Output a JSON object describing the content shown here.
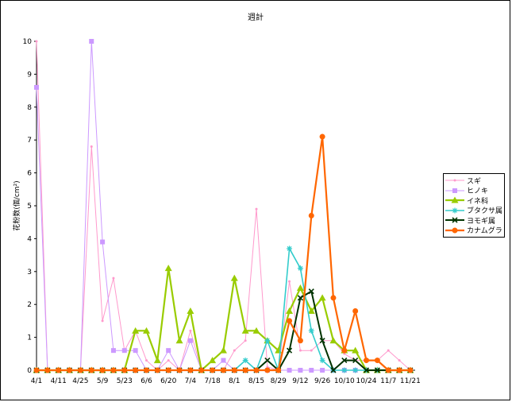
{
  "chart_data": {
    "type": "line",
    "title": "週計",
    "xlabel": "",
    "ylabel": "花粉数(個/cm²)",
    "ylim": [
      0,
      10
    ],
    "yticks": [
      0,
      1,
      2,
      3,
      4,
      5,
      6,
      7,
      8,
      9,
      10
    ],
    "x_tick_labels": [
      "4/1",
      "4/11",
      "4/25",
      "5/9",
      "5/23",
      "6/6",
      "6/20",
      "7/4",
      "7/18",
      "8/1",
      "8/15",
      "8/29",
      "9/12",
      "9/26",
      "10/10",
      "10/24",
      "11/7",
      "11/21"
    ],
    "legend_position": "right",
    "grid": false,
    "series": [
      {
        "name": "スギ",
        "color": "#ff99cc",
        "marker": "dot",
        "values": [
          10,
          0,
          0,
          0,
          0,
          6.8,
          1.5,
          2.8,
          0.6,
          1.2,
          0.3,
          0,
          0.3,
          0,
          1.2,
          0,
          0,
          0,
          0.6,
          0.9,
          4.9,
          0.1,
          0,
          2.7,
          0.6,
          0.6,
          0.9,
          0.9,
          0.5,
          0.3,
          0.3,
          0.3,
          0.6,
          0.3,
          0
        ]
      },
      {
        "name": "ヒノキ",
        "color": "#cc99ff",
        "marker": "square",
        "values": [
          8.6,
          0,
          0,
          0,
          0,
          10,
          3.9,
          0.6,
          0.6,
          0.6,
          0,
          0,
          0.6,
          0,
          0.9,
          0,
          0,
          0.3,
          0,
          0,
          0,
          0,
          0,
          0,
          0,
          0,
          0,
          0,
          0,
          0,
          0,
          0,
          0,
          0,
          0
        ]
      },
      {
        "name": "イネ科",
        "color": "#99cc00",
        "marker": "triangle",
        "values": [
          0,
          0,
          0,
          0,
          0,
          0,
          0,
          0,
          0,
          1.2,
          1.2,
          0.3,
          3.1,
          0.9,
          1.8,
          0,
          0.3,
          0.6,
          2.8,
          1.2,
          1.2,
          0.9,
          0.6,
          1.8,
          2.5,
          1.8,
          2.2,
          0.9,
          0.6,
          0.6,
          0,
          0,
          0,
          0,
          0
        ]
      },
      {
        "name": "ブタクサ属",
        "color": "#33cccc",
        "marker": "star",
        "values": [
          0,
          0,
          0,
          0,
          0,
          0,
          0,
          0,
          0,
          0,
          0,
          0,
          0,
          0,
          0,
          0,
          0,
          0,
          0,
          0.3,
          0,
          0.9,
          0,
          3.7,
          3.1,
          1.2,
          0.3,
          0,
          0,
          0,
          0,
          0,
          0,
          0,
          0
        ]
      },
      {
        "name": "ヨモギ属",
        "color": "#003300",
        "marker": "x",
        "values": [
          0,
          0,
          0,
          0,
          0,
          0,
          0,
          0,
          0,
          0,
          0,
          0,
          0,
          0,
          0,
          0,
          0,
          0,
          0,
          0,
          0,
          0.3,
          0,
          0.6,
          2.2,
          2.4,
          0.9,
          0,
          0.3,
          0.3,
          0,
          0,
          0,
          0,
          0
        ]
      },
      {
        "name": "カナムグラ",
        "color": "#ff6600",
        "marker": "diamond",
        "values": [
          0,
          0,
          0,
          0,
          0,
          0,
          0,
          0,
          0,
          0,
          0,
          0,
          0,
          0,
          0,
          0,
          0,
          0,
          0,
          0,
          0,
          0,
          0,
          1.5,
          0.9,
          4.7,
          7.1,
          2.2,
          0.6,
          1.8,
          0.3,
          0.3,
          0,
          0,
          0
        ]
      }
    ]
  }
}
